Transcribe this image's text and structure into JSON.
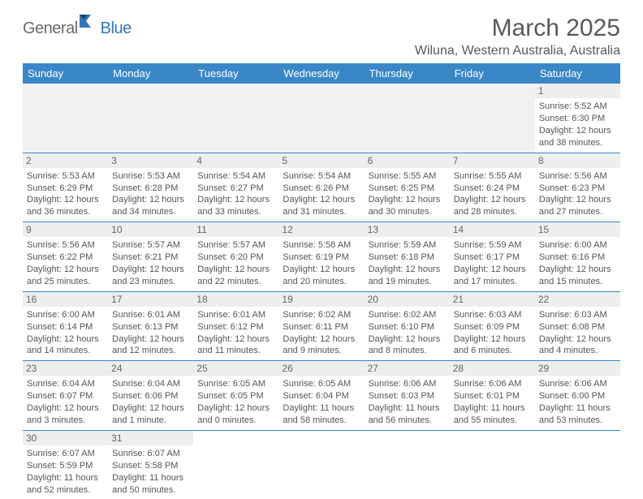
{
  "brand": {
    "part1": "General",
    "part2": "Blue"
  },
  "title": "March 2025",
  "location": "Wiluna, Western Australia, Australia",
  "colors": {
    "header_bg": "#3a87c8",
    "header_text": "#ffffff",
    "daynum_bg": "#eeeeee",
    "row_border": "#3a87c8",
    "body_text": "#555555",
    "title_text": "#595959"
  },
  "dow": [
    "Sunday",
    "Monday",
    "Tuesday",
    "Wednesday",
    "Thursday",
    "Friday",
    "Saturday"
  ],
  "weeks": [
    [
      null,
      null,
      null,
      null,
      null,
      null,
      {
        "n": "1",
        "sr": "Sunrise: 5:52 AM",
        "ss": "Sunset: 6:30 PM",
        "d1": "Daylight: 12 hours",
        "d2": "and 38 minutes."
      }
    ],
    [
      {
        "n": "2",
        "sr": "Sunrise: 5:53 AM",
        "ss": "Sunset: 6:29 PM",
        "d1": "Daylight: 12 hours",
        "d2": "and 36 minutes."
      },
      {
        "n": "3",
        "sr": "Sunrise: 5:53 AM",
        "ss": "Sunset: 6:28 PM",
        "d1": "Daylight: 12 hours",
        "d2": "and 34 minutes."
      },
      {
        "n": "4",
        "sr": "Sunrise: 5:54 AM",
        "ss": "Sunset: 6:27 PM",
        "d1": "Daylight: 12 hours",
        "d2": "and 33 minutes."
      },
      {
        "n": "5",
        "sr": "Sunrise: 5:54 AM",
        "ss": "Sunset: 6:26 PM",
        "d1": "Daylight: 12 hours",
        "d2": "and 31 minutes."
      },
      {
        "n": "6",
        "sr": "Sunrise: 5:55 AM",
        "ss": "Sunset: 6:25 PM",
        "d1": "Daylight: 12 hours",
        "d2": "and 30 minutes."
      },
      {
        "n": "7",
        "sr": "Sunrise: 5:55 AM",
        "ss": "Sunset: 6:24 PM",
        "d1": "Daylight: 12 hours",
        "d2": "and 28 minutes."
      },
      {
        "n": "8",
        "sr": "Sunrise: 5:56 AM",
        "ss": "Sunset: 6:23 PM",
        "d1": "Daylight: 12 hours",
        "d2": "and 27 minutes."
      }
    ],
    [
      {
        "n": "9",
        "sr": "Sunrise: 5:56 AM",
        "ss": "Sunset: 6:22 PM",
        "d1": "Daylight: 12 hours",
        "d2": "and 25 minutes."
      },
      {
        "n": "10",
        "sr": "Sunrise: 5:57 AM",
        "ss": "Sunset: 6:21 PM",
        "d1": "Daylight: 12 hours",
        "d2": "and 23 minutes."
      },
      {
        "n": "11",
        "sr": "Sunrise: 5:57 AM",
        "ss": "Sunset: 6:20 PM",
        "d1": "Daylight: 12 hours",
        "d2": "and 22 minutes."
      },
      {
        "n": "12",
        "sr": "Sunrise: 5:58 AM",
        "ss": "Sunset: 6:19 PM",
        "d1": "Daylight: 12 hours",
        "d2": "and 20 minutes."
      },
      {
        "n": "13",
        "sr": "Sunrise: 5:59 AM",
        "ss": "Sunset: 6:18 PM",
        "d1": "Daylight: 12 hours",
        "d2": "and 19 minutes."
      },
      {
        "n": "14",
        "sr": "Sunrise: 5:59 AM",
        "ss": "Sunset: 6:17 PM",
        "d1": "Daylight: 12 hours",
        "d2": "and 17 minutes."
      },
      {
        "n": "15",
        "sr": "Sunrise: 6:00 AM",
        "ss": "Sunset: 6:16 PM",
        "d1": "Daylight: 12 hours",
        "d2": "and 15 minutes."
      }
    ],
    [
      {
        "n": "16",
        "sr": "Sunrise: 6:00 AM",
        "ss": "Sunset: 6:14 PM",
        "d1": "Daylight: 12 hours",
        "d2": "and 14 minutes."
      },
      {
        "n": "17",
        "sr": "Sunrise: 6:01 AM",
        "ss": "Sunset: 6:13 PM",
        "d1": "Daylight: 12 hours",
        "d2": "and 12 minutes."
      },
      {
        "n": "18",
        "sr": "Sunrise: 6:01 AM",
        "ss": "Sunset: 6:12 PM",
        "d1": "Daylight: 12 hours",
        "d2": "and 11 minutes."
      },
      {
        "n": "19",
        "sr": "Sunrise: 6:02 AM",
        "ss": "Sunset: 6:11 PM",
        "d1": "Daylight: 12 hours",
        "d2": "and 9 minutes."
      },
      {
        "n": "20",
        "sr": "Sunrise: 6:02 AM",
        "ss": "Sunset: 6:10 PM",
        "d1": "Daylight: 12 hours",
        "d2": "and 8 minutes."
      },
      {
        "n": "21",
        "sr": "Sunrise: 6:03 AM",
        "ss": "Sunset: 6:09 PM",
        "d1": "Daylight: 12 hours",
        "d2": "and 6 minutes."
      },
      {
        "n": "22",
        "sr": "Sunrise: 6:03 AM",
        "ss": "Sunset: 6:08 PM",
        "d1": "Daylight: 12 hours",
        "d2": "and 4 minutes."
      }
    ],
    [
      {
        "n": "23",
        "sr": "Sunrise: 6:04 AM",
        "ss": "Sunset: 6:07 PM",
        "d1": "Daylight: 12 hours",
        "d2": "and 3 minutes."
      },
      {
        "n": "24",
        "sr": "Sunrise: 6:04 AM",
        "ss": "Sunset: 6:06 PM",
        "d1": "Daylight: 12 hours",
        "d2": "and 1 minute."
      },
      {
        "n": "25",
        "sr": "Sunrise: 6:05 AM",
        "ss": "Sunset: 6:05 PM",
        "d1": "Daylight: 12 hours",
        "d2": "and 0 minutes."
      },
      {
        "n": "26",
        "sr": "Sunrise: 6:05 AM",
        "ss": "Sunset: 6:04 PM",
        "d1": "Daylight: 11 hours",
        "d2": "and 58 minutes."
      },
      {
        "n": "27",
        "sr": "Sunrise: 6:06 AM",
        "ss": "Sunset: 6:03 PM",
        "d1": "Daylight: 11 hours",
        "d2": "and 56 minutes."
      },
      {
        "n": "28",
        "sr": "Sunrise: 6:06 AM",
        "ss": "Sunset: 6:01 PM",
        "d1": "Daylight: 11 hours",
        "d2": "and 55 minutes."
      },
      {
        "n": "29",
        "sr": "Sunrise: 6:06 AM",
        "ss": "Sunset: 6:00 PM",
        "d1": "Daylight: 11 hours",
        "d2": "and 53 minutes."
      }
    ],
    [
      {
        "n": "30",
        "sr": "Sunrise: 6:07 AM",
        "ss": "Sunset: 5:59 PM",
        "d1": "Daylight: 11 hours",
        "d2": "and 52 minutes."
      },
      {
        "n": "31",
        "sr": "Sunrise: 6:07 AM",
        "ss": "Sunset: 5:58 PM",
        "d1": "Daylight: 11 hours",
        "d2": "and 50 minutes."
      },
      null,
      null,
      null,
      null,
      null
    ]
  ]
}
